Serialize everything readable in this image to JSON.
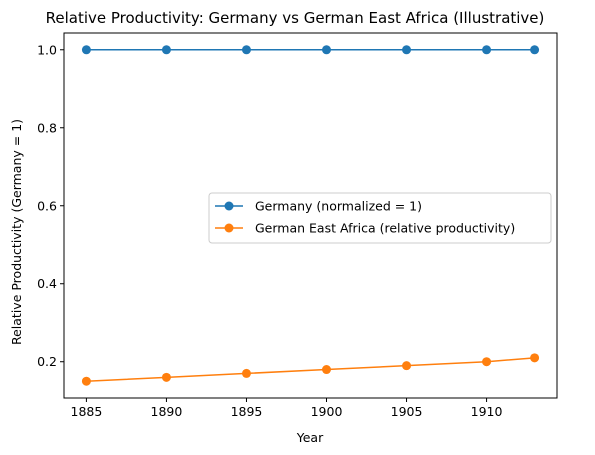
{
  "chart_data": {
    "type": "line",
    "title": "Relative Productivity: Germany vs German East Africa (Illustrative)",
    "xlabel": "Year",
    "ylabel": "Relative Productivity (Germany = 1)",
    "x": [
      1885,
      1890,
      1895,
      1900,
      1905,
      1910,
      1913
    ],
    "xlim": [
      1883.6,
      1914.4
    ],
    "ylim": [
      0.107,
      1.043
    ],
    "xticks": [
      1885,
      1890,
      1895,
      1900,
      1905,
      1910
    ],
    "xtick_labels": [
      "1885",
      "1890",
      "1895",
      "1900",
      "1905",
      "1910"
    ],
    "yticks": [
      0.2,
      0.4,
      0.6,
      0.8,
      1.0
    ],
    "ytick_labels": [
      "0.2",
      "0.4",
      "0.6",
      "0.8",
      "1.0"
    ],
    "grid": false,
    "legend_placement": "center-right",
    "series": [
      {
        "name": "Germany (normalized = 1)",
        "color": "#1f77b4",
        "values": [
          1.0,
          1.0,
          1.0,
          1.0,
          1.0,
          1.0,
          1.0
        ]
      },
      {
        "name": "German East Africa (relative productivity)",
        "color": "#ff7f0e",
        "values": [
          0.15,
          0.16,
          0.17,
          0.18,
          0.19,
          0.2,
          0.21
        ]
      }
    ]
  }
}
